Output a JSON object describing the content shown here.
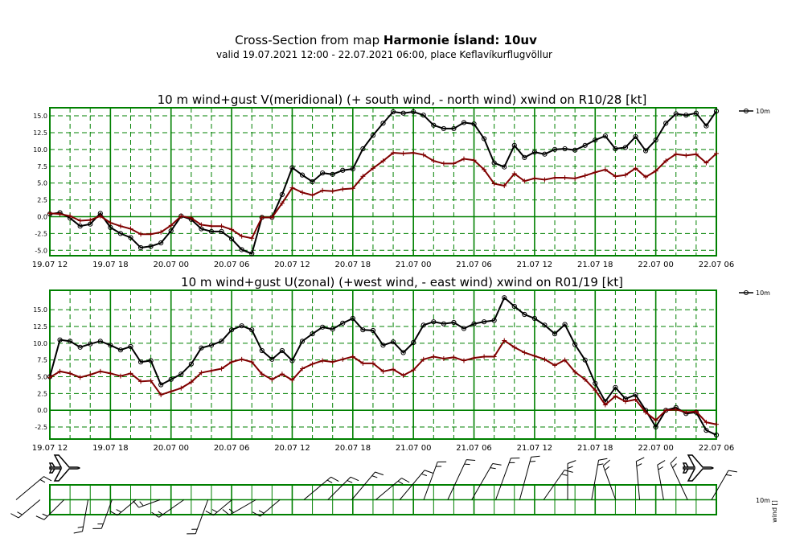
{
  "header": {
    "title_prefix": "Cross-Section from map ",
    "title_bold": "Harmonie Ísland: 10uv",
    "subtitle": "valid 19.07.2021 12:00 - 22.07.2021 06:00, place Keflavíkurflugvöllur"
  },
  "colors": {
    "frame": "#008000",
    "wind": "#000000",
    "gust": "#800000"
  },
  "x_ticks": [
    "19.07 12",
    "19.07 18",
    "20.07 00",
    "20.07 06",
    "20.07 12",
    "20.07 18",
    "21.07 00",
    "21.07 06",
    "21.07 12",
    "21.07 18",
    "22.07 00",
    "22.07 06"
  ],
  "chart_data": [
    {
      "type": "line",
      "title": "10 m wind+gust V(meridional) (+ south wind, - north wind) xwind on R10/28 [kt]",
      "ylim": [
        -5.8,
        16.2
      ],
      "yticks": [
        "-5.0",
        "-2.5",
        "0.0",
        "2.5",
        "5.0",
        "7.5",
        "10.0",
        "12.5",
        "15.0"
      ],
      "ytick_values": [
        -5,
        -2.5,
        0,
        2.5,
        5,
        7.5,
        10,
        12.5,
        15
      ],
      "grid": true,
      "legend": "right",
      "series": [
        {
          "name": "10m",
          "marker": "circle",
          "values": [
            0.4,
            0.6,
            -0.2,
            -1.4,
            -1.1,
            0.5,
            -1.6,
            -2.5,
            -3.1,
            -4.6,
            -4.4,
            -3.9,
            -2.1,
            0.1,
            -0.4,
            -1.8,
            -2.2,
            -2.2,
            -3.3,
            -4.9,
            -5.5,
            -0.1,
            -0.1,
            3.3,
            7.3,
            6.2,
            5.2,
            6.5,
            6.3,
            6.9,
            7.1,
            10.1,
            12.1,
            13.9,
            15.6,
            15.4,
            15.6,
            15.1,
            13.6,
            13.1,
            13.1,
            14.0,
            13.8,
            11.6,
            8.0,
            7.4,
            10.6,
            8.8,
            9.6,
            9.3,
            10.0,
            10.1,
            9.9,
            10.6,
            11.4,
            12.0,
            10.1,
            10.3,
            11.9,
            9.8,
            11.4,
            13.9,
            15.3,
            15.1,
            15.4,
            13.5,
            15.7
          ]
        },
        {
          "name": "",
          "marker": "plus",
          "values": [
            0.5,
            0.4,
            0.1,
            -0.6,
            -0.5,
            0.1,
            -0.9,
            -1.4,
            -1.8,
            -2.6,
            -2.6,
            -2.3,
            -1.3,
            0.1,
            -0.2,
            -1.2,
            -1.4,
            -1.4,
            -1.9,
            -2.9,
            -3.2,
            -0.1,
            -0.1,
            2.0,
            4.3,
            3.6,
            3.2,
            3.9,
            3.8,
            4.1,
            4.2,
            6.0,
            7.2,
            8.3,
            9.5,
            9.4,
            9.5,
            9.2,
            8.3,
            7.9,
            7.9,
            8.6,
            8.4,
            7.0,
            4.9,
            4.6,
            6.4,
            5.3,
            5.7,
            5.5,
            5.8,
            5.8,
            5.7,
            6.1,
            6.6,
            7.0,
            6.0,
            6.2,
            7.2,
            5.9,
            6.8,
            8.3,
            9.3,
            9.1,
            9.3,
            8.0,
            9.4
          ]
        }
      ]
    },
    {
      "type": "line",
      "title": "10 m wind+gust U(zonal) (+west wind, - east wind) xwind on R01/19 [kt]",
      "ylim": [
        -4.3,
        17.9
      ],
      "yticks": [
        "-2.5",
        "0.0",
        "2.5",
        "5.0",
        "7.5",
        "10.0",
        "12.5",
        "15.0"
      ],
      "ytick_values": [
        -2.5,
        0,
        2.5,
        5,
        7.5,
        10,
        12.5,
        15
      ],
      "grid": true,
      "legend": "right",
      "series": [
        {
          "name": "10m",
          "marker": "circle",
          "values": [
            5.0,
            10.5,
            10.3,
            9.4,
            9.9,
            10.3,
            9.7,
            9.0,
            9.5,
            7.2,
            7.4,
            3.8,
            4.6,
            5.4,
            6.9,
            9.3,
            9.7,
            10.3,
            12.0,
            12.6,
            12.0,
            8.9,
            7.6,
            8.9,
            7.4,
            10.3,
            11.4,
            12.4,
            12.1,
            13.0,
            13.7,
            12.0,
            11.9,
            9.7,
            10.2,
            8.6,
            10.1,
            12.7,
            13.2,
            12.9,
            13.1,
            12.2,
            12.9,
            13.2,
            13.4,
            16.8,
            15.5,
            14.3,
            13.7,
            12.7,
            11.4,
            12.8,
            9.8,
            7.5,
            4.0,
            1.3,
            3.4,
            1.7,
            2.3,
            0.0,
            -2.5,
            0.0,
            0.4,
            -0.5,
            -0.3,
            -3.0,
            -3.7
          ]
        },
        {
          "name": "",
          "marker": "plus",
          "values": [
            4.9,
            5.8,
            5.5,
            4.9,
            5.3,
            5.8,
            5.5,
            5.1,
            5.5,
            4.3,
            4.4,
            2.3,
            2.8,
            3.3,
            4.2,
            5.6,
            5.9,
            6.2,
            7.2,
            7.6,
            7.2,
            5.4,
            4.6,
            5.4,
            4.5,
            6.2,
            6.9,
            7.4,
            7.2,
            7.6,
            8.0,
            7.0,
            7.0,
            5.8,
            6.1,
            5.2,
            6.0,
            7.6,
            8.0,
            7.7,
            7.9,
            7.4,
            7.8,
            8.0,
            8.0,
            10.4,
            9.4,
            8.6,
            8.1,
            7.6,
            6.7,
            7.5,
            5.7,
            4.6,
            3.0,
            0.8,
            2.1,
            1.3,
            1.6,
            -0.3,
            -1.5,
            0.0,
            0.1,
            -0.3,
            -0.2,
            -1.8,
            -2.1
          ]
        }
      ]
    }
  ],
  "wind_strip": {
    "label_value": "10m",
    "label_side": "wind []",
    "barbs": [
      {
        "dir": 50,
        "len": 45
      },
      {
        "dir": 230,
        "len": 35
      },
      {
        "dir": 225,
        "len": 35
      },
      {
        "dir": 190,
        "len": 40
      },
      {
        "dir": 200,
        "len": 38
      },
      {
        "dir": 230,
        "len": 30
      },
      {
        "dir": 250,
        "len": 28
      },
      {
        "dir": 235,
        "len": 38
      },
      {
        "dir": 200,
        "len": 45
      },
      {
        "dir": 230,
        "len": 30
      },
      {
        "dir": 240,
        "len": 38
      },
      {
        "dir": 230,
        "len": 32
      },
      {
        "dir": 50,
        "len": 44
      },
      {
        "dir": 45,
        "len": 40
      },
      {
        "dir": 40,
        "len": 45
      },
      {
        "dir": 50,
        "len": 42
      },
      {
        "dir": 40,
        "len": 48
      },
      {
        "dir": 20,
        "len": 50
      },
      {
        "dir": 25,
        "len": 55
      },
      {
        "dir": 30,
        "len": 52
      },
      {
        "dir": 20,
        "len": 55
      },
      {
        "dir": 15,
        "len": 55
      },
      {
        "dir": 35,
        "len": 45
      },
      {
        "dir": 0,
        "len": 45
      },
      {
        "dir": 10,
        "len": 50
      },
      {
        "dir": 340,
        "len": 45
      },
      {
        "dir": 355,
        "len": 48
      },
      {
        "dir": 350,
        "len": 44
      },
      {
        "dir": 335,
        "len": 50
      },
      {
        "dir": 30,
        "len": 42
      }
    ]
  }
}
